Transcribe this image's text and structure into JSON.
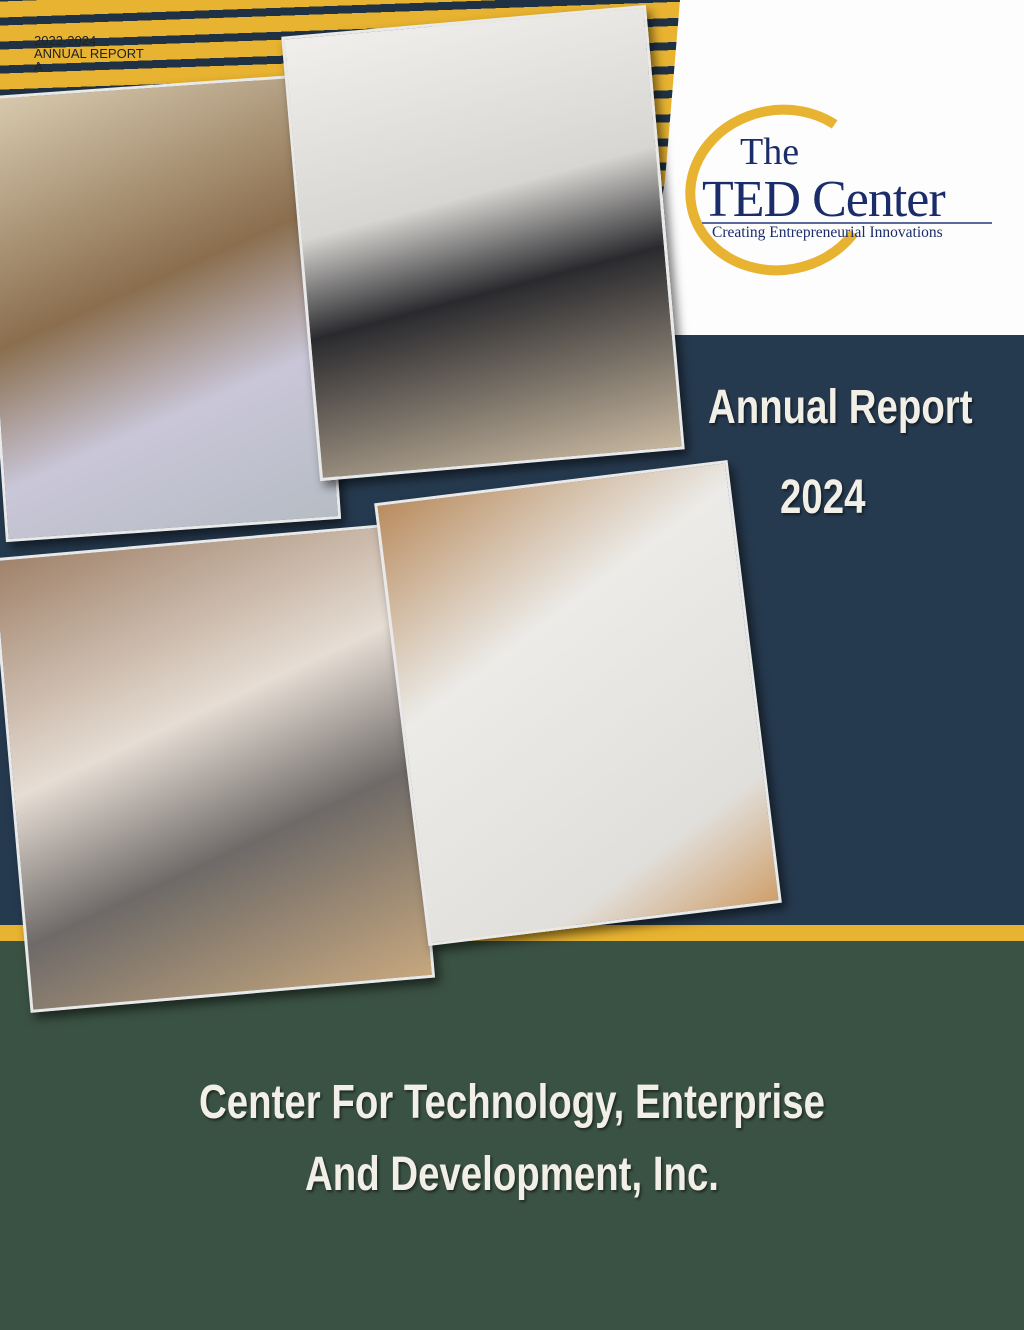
{
  "corner_label": {
    "line1": "2022-2024",
    "line2": "ANNUAL REPORT",
    "line3": "A"
  },
  "logo": {
    "the": "The",
    "name": "TED Center",
    "tagline": "Creating Entrepreneurial Innovations"
  },
  "title": {
    "line1": "Annual Report",
    "line2": "2024"
  },
  "organization": {
    "line1": "Center For Technology, Enterprise",
    "line2": "And Development, Inc."
  },
  "colors": {
    "navy": "#263a4f",
    "gold": "#e8b330",
    "green": "#3a5243",
    "logo_blue": "#1b2c6b"
  }
}
